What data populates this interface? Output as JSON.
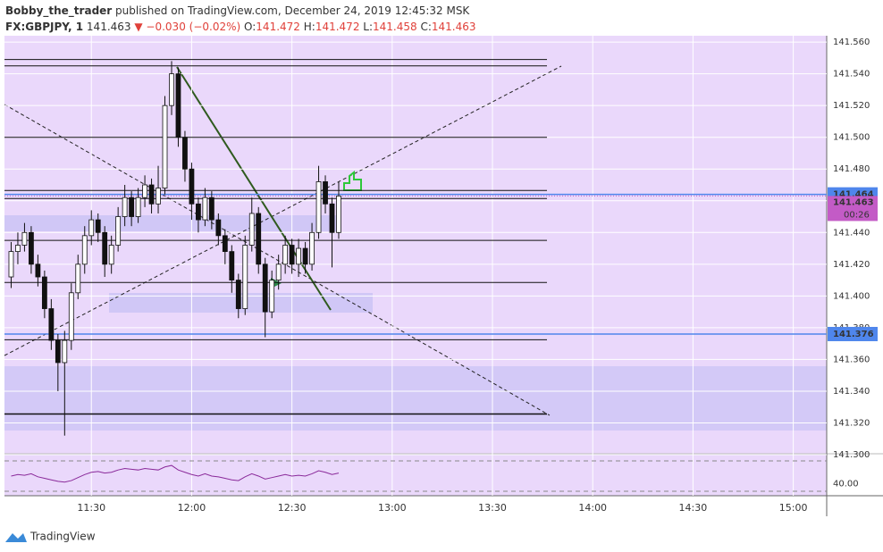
{
  "header": {
    "author": "Bobby_the_trader",
    "published": "published on TradingView.com, December 24, 2019 12:45:32 MSK",
    "symbol": "FX:GBPJPY, 1",
    "price": 141.463,
    "change": "▼ −0.030 (−0.02%)",
    "ohlc": [
      {
        "label": "O:",
        "value": 141.472
      },
      {
        "label": "H:",
        "value": 141.472
      },
      {
        "label": "L:",
        "value": 141.458
      },
      {
        "label": "C:",
        "value": 141.463
      }
    ]
  },
  "footer": {
    "brand": "TradingView"
  },
  "chart_data": {
    "type": "candlestick",
    "x": [
      "11:06",
      "11:08",
      "11:10",
      "11:12",
      "11:14",
      "11:16",
      "11:18",
      "11:20",
      "11:22",
      "11:24",
      "11:26",
      "11:28",
      "11:30",
      "11:32",
      "11:34",
      "11:36",
      "11:38",
      "11:40",
      "11:42",
      "11:44",
      "11:46",
      "11:48",
      "11:50",
      "11:52",
      "11:54",
      "11:56",
      "11:58",
      "12:00",
      "12:02",
      "12:04",
      "12:06",
      "12:08",
      "12:10",
      "12:12",
      "12:14",
      "12:16",
      "12:18",
      "12:20",
      "12:22",
      "12:24",
      "12:26",
      "12:28",
      "12:30",
      "12:32",
      "12:34",
      "12:36",
      "12:38",
      "12:40",
      "12:42",
      "12:44"
    ],
    "open": [
      141.412,
      141.428,
      141.432,
      141.44,
      141.42,
      141.412,
      141.392,
      141.372,
      141.358,
      141.372,
      141.402,
      141.42,
      141.438,
      141.448,
      141.44,
      141.42,
      141.432,
      141.45,
      141.462,
      141.45,
      141.462,
      141.47,
      141.458,
      141.468,
      141.52,
      141.54,
      141.5,
      141.48,
      141.458,
      141.448,
      141.462,
      141.448,
      141.438,
      141.428,
      141.41,
      141.392,
      141.432,
      141.452,
      141.42,
      141.39,
      141.41,
      141.42,
      141.432,
      141.42,
      141.43,
      141.42,
      141.44,
      141.472,
      141.458,
      141.44
    ],
    "high": [
      141.434,
      141.44,
      141.446,
      141.444,
      141.426,
      141.416,
      141.398,
      141.376,
      141.378,
      141.408,
      141.426,
      141.444,
      141.454,
      141.452,
      141.444,
      141.438,
      141.456,
      141.47,
      141.466,
      141.468,
      141.476,
      141.474,
      141.482,
      141.526,
      141.548,
      141.544,
      141.504,
      141.484,
      141.462,
      141.468,
      141.466,
      141.452,
      141.442,
      141.432,
      141.414,
      141.438,
      141.462,
      141.456,
      141.424,
      141.416,
      141.426,
      141.438,
      141.436,
      141.436,
      141.434,
      141.446,
      141.482,
      141.476,
      141.462,
      141.472
    ],
    "low": [
      141.405,
      141.42,
      141.428,
      141.414,
      141.406,
      141.386,
      141.366,
      141.34,
      141.312,
      141.366,
      141.398,
      141.414,
      141.432,
      141.434,
      141.412,
      141.414,
      141.428,
      141.444,
      141.444,
      141.446,
      141.456,
      141.452,
      141.452,
      141.464,
      141.514,
      141.494,
      141.472,
      141.448,
      141.44,
      141.444,
      141.442,
      141.432,
      141.42,
      141.402,
      141.386,
      141.388,
      141.428,
      141.414,
      141.374,
      141.386,
      141.404,
      141.414,
      141.414,
      141.412,
      141.414,
      141.416,
      141.436,
      141.452,
      141.418,
      141.436
    ],
    "close": [
      141.428,
      141.432,
      141.44,
      141.42,
      141.412,
      141.392,
      141.372,
      141.358,
      141.372,
      141.402,
      141.42,
      141.438,
      141.448,
      141.44,
      141.42,
      141.432,
      141.45,
      141.462,
      141.45,
      141.462,
      141.47,
      141.458,
      141.468,
      141.52,
      141.54,
      141.5,
      141.48,
      141.458,
      141.448,
      141.462,
      141.448,
      141.438,
      141.428,
      141.41,
      141.392,
      141.432,
      141.452,
      141.42,
      141.39,
      141.41,
      141.42,
      141.432,
      141.42,
      141.43,
      141.42,
      141.44,
      141.472,
      141.458,
      141.44,
      141.463
    ],
    "xlim": [
      "11:04",
      "15:10"
    ],
    "xticks": [
      "11:30",
      "12:00",
      "12:30",
      "13:00",
      "13:30",
      "14:00",
      "14:30",
      "15:00"
    ],
    "ylim": [
      141.3,
      141.564
    ],
    "yticks": [
      {
        "value": 141.3,
        "label": "141.300"
      },
      {
        "value": 141.32,
        "label": "141.320"
      },
      {
        "value": 141.34,
        "label": "141.340"
      },
      {
        "value": 141.36,
        "label": "141.360"
      },
      {
        "value": 141.38,
        "label": "141.380"
      },
      {
        "value": 141.4,
        "label": "141.400"
      },
      {
        "value": 141.42,
        "label": "141.420"
      },
      {
        "value": 141.44,
        "label": "141.440"
      },
      {
        "value": 141.46,
        "label": "141.460"
      },
      {
        "value": 141.48,
        "label": "141.480"
      },
      {
        "value": 141.5,
        "label": "141.500"
      },
      {
        "value": 141.52,
        "label": "141.520"
      },
      {
        "value": 141.54,
        "label": "141.540"
      },
      {
        "value": 141.56,
        "label": "141.560"
      }
    ],
    "levels": [
      141.549,
      141.545,
      141.5,
      141.4665,
      141.4614,
      141.435,
      141.4085,
      141.3724,
      141.3256
    ],
    "price_lines": [
      {
        "value": 141.464,
        "label": "141.464",
        "color": "#4f86ec"
      },
      {
        "value": 141.376,
        "label": "141.376",
        "color": "#4f86ec"
      }
    ],
    "last_price": {
      "value": 141.463,
      "label": "141.463",
      "color": "#c35bc6"
    },
    "countdown": "00:26",
    "oscillator": {
      "values": [
        50,
        52,
        51,
        53,
        49,
        47,
        45,
        43,
        42,
        44,
        48,
        52,
        55,
        56,
        54,
        55,
        58,
        60,
        59,
        58,
        60,
        59,
        58,
        62,
        64,
        58,
        55,
        52,
        50,
        53,
        50,
        49,
        47,
        45,
        44,
        49,
        53,
        50,
        46,
        48,
        50,
        52,
        50,
        51,
        50,
        53,
        57,
        55,
        52,
        54
      ],
      "color": "#8a2a9a",
      "ylim": [
        27.6,
        74.7
      ],
      "yticks": [
        {
          "value": 40,
          "label": "40.00"
        }
      ],
      "levels": [
        70,
        30
      ]
    }
  }
}
